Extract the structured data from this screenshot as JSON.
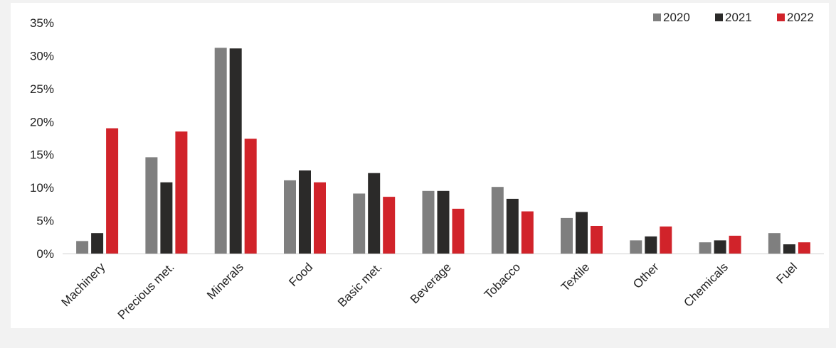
{
  "chart_data": {
    "type": "bar",
    "categories": [
      "Machinery",
      "Precious met.",
      "Minerals",
      "Food",
      "Basic met.",
      "Beverage",
      "Tobacco",
      "Textile",
      "Other",
      "Chemicals",
      "Fuel"
    ],
    "series": [
      {
        "name": "2020",
        "color": "#7f7f7f",
        "values": [
          1.9,
          14.6,
          31.2,
          11.1,
          9.1,
          9.5,
          10.1,
          5.4,
          2.0,
          1.7,
          3.1
        ]
      },
      {
        "name": "2021",
        "color": "#2b2a29",
        "values": [
          3.1,
          10.8,
          31.1,
          12.6,
          12.2,
          9.5,
          8.3,
          6.3,
          2.6,
          2.0,
          1.4
        ]
      },
      {
        "name": "2022",
        "color": "#d1232a",
        "values": [
          19.0,
          18.5,
          17.4,
          10.8,
          8.6,
          6.8,
          6.4,
          4.2,
          4.1,
          2.7,
          1.7
        ]
      }
    ],
    "y_ticks": [
      "0%",
      "5%",
      "10%",
      "15%",
      "20%",
      "25%",
      "30%",
      "35%"
    ],
    "ylim": [
      0,
      35
    ],
    "legend_position": "top-right",
    "grid": false
  }
}
